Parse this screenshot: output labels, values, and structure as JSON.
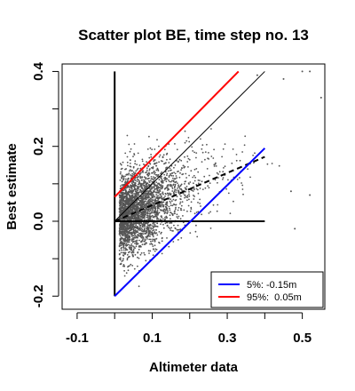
{
  "chart_data": {
    "type": "scatter",
    "title": "Scatter plot BE, time step no. 13",
    "xlabel": "Altimeter data",
    "ylabel": "Best estimate",
    "xlim": [
      -0.14,
      0.56
    ],
    "ylim": [
      -0.235,
      0.42
    ],
    "x_ticks": [
      -0.1,
      0.1,
      0.3,
      0.5
    ],
    "x_tick_labels": [
      "-0.1",
      "0.1",
      "0.3",
      "0.5"
    ],
    "y_ticks": [
      -0.2,
      0.0,
      0.2,
      0.4
    ],
    "y_tick_labels": [
      "-0.2",
      "0.0",
      "0.2",
      "0.4"
    ],
    "grid": false,
    "legend_position": "bottom-right",
    "reference_lines": [
      {
        "kind": "vertical-axis",
        "x": [
          0.0,
          0.0
        ],
        "y": [
          -0.2,
          0.4
        ],
        "color": "#000000",
        "width": 2,
        "dash": "none"
      },
      {
        "kind": "horizontal-axis",
        "x": [
          0.0,
          0.4
        ],
        "y": [
          0.0,
          0.0
        ],
        "color": "#000000",
        "width": 2,
        "dash": "none"
      },
      {
        "kind": "identity",
        "x": [
          0.0,
          0.4
        ],
        "y": [
          0.0,
          0.4
        ],
        "color": "#000000",
        "width": 1,
        "dash": "none"
      },
      {
        "kind": "regression",
        "x": [
          0.0,
          0.4
        ],
        "y": [
          0.0,
          0.172
        ],
        "color": "#000000",
        "width": 2,
        "dash": "6,4"
      }
    ],
    "series": [
      {
        "name": "5%: -0.15m",
        "color": "#0000ff",
        "x": [
          0.0,
          0.4
        ],
        "y": [
          -0.2,
          0.195
        ]
      },
      {
        "name": "95%:  0.05m",
        "color": "#ff0000",
        "x": [
          0.0,
          0.33
        ],
        "y": [
          0.065,
          0.4
        ]
      }
    ],
    "scatter": {
      "color": "#555555",
      "n_points": 3000,
      "x_center": 0.03,
      "x_spread": 0.07,
      "y_slope": 0.43,
      "y_intercept": 0.005,
      "y_noise": 0.055,
      "x_range": [
        0.0,
        0.48
      ],
      "y_range": [
        -0.2,
        0.39
      ],
      "outliers": [
        [
          0.38,
          0.39
        ],
        [
          0.45,
          0.38
        ],
        [
          0.5,
          0.4
        ],
        [
          0.52,
          0.4
        ],
        [
          0.55,
          0.33
        ],
        [
          0.47,
          0.08
        ],
        [
          0.52,
          0.07
        ],
        [
          0.48,
          -0.02
        ]
      ]
    }
  }
}
